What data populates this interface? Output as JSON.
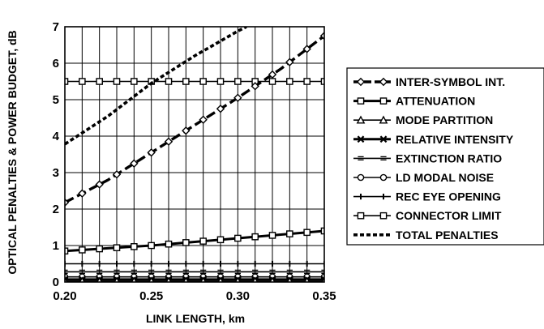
{
  "chart_data": {
    "type": "line",
    "xlabel": "LINK LENGTH, km",
    "ylabel": "OPTICAL PENALTIES & POWER BUDGET, dB",
    "xlim": [
      0.2,
      0.35
    ],
    "ylim": [
      0,
      7
    ],
    "x_ticks": [
      "0.20",
      "0.25",
      "0.30",
      "0.35"
    ],
    "y_ticks": [
      "0",
      "1",
      "2",
      "3",
      "4",
      "5",
      "6",
      "7"
    ],
    "grid": true,
    "legend_position": "right",
    "series": [
      {
        "name": "INTER-SYMBOL INT.",
        "marker": "diamond",
        "line": "heavy-dash",
        "x": [
          0.2,
          0.225,
          0.25,
          0.275,
          0.3,
          0.325,
          0.35
        ],
        "y": [
          2.18,
          2.8,
          3.55,
          4.3,
          5.05,
          5.85,
          6.75
        ]
      },
      {
        "name": "ATTENUATION",
        "marker": "square",
        "line": "heavy-solid",
        "x": [
          0.2,
          0.25,
          0.3,
          0.35
        ],
        "y": [
          0.85,
          1.0,
          1.2,
          1.4
        ]
      },
      {
        "name": "MODE PARTITION",
        "marker": "triangle",
        "line": "solid",
        "x": [
          0.2,
          0.35
        ],
        "y": [
          0.02,
          0.02
        ]
      },
      {
        "name": "RELATIVE INTENSITY",
        "marker": "x",
        "line": "heavy-solid",
        "x": [
          0.2,
          0.35
        ],
        "y": [
          0.07,
          0.07
        ]
      },
      {
        "name": "EXTINCTION RATIO",
        "marker": "dash",
        "line": "solid",
        "x": [
          0.2,
          0.35
        ],
        "y": [
          0.28,
          0.28
        ]
      },
      {
        "name": "LD MODAL NOISE",
        "marker": "circle",
        "line": "solid",
        "x": [
          0.2,
          0.35
        ],
        "y": [
          0.14,
          0.14
        ]
      },
      {
        "name": "REC EYE OPENING",
        "marker": "plus",
        "line": "solid",
        "x": [
          0.2,
          0.35
        ],
        "y": [
          0.5,
          0.5
        ]
      },
      {
        "name": "CONNECTOR LIMIT",
        "marker": "square",
        "line": "solid",
        "x": [
          0.2,
          0.35
        ],
        "y": [
          5.5,
          5.5
        ]
      },
      {
        "name": "TOTAL PENALTIES",
        "marker": "none",
        "line": "dotted",
        "x": [
          0.2,
          0.225,
          0.25,
          0.275,
          0.3,
          0.305
        ],
        "y": [
          3.78,
          4.55,
          5.45,
          6.2,
          6.88,
          7.0
        ]
      }
    ]
  }
}
